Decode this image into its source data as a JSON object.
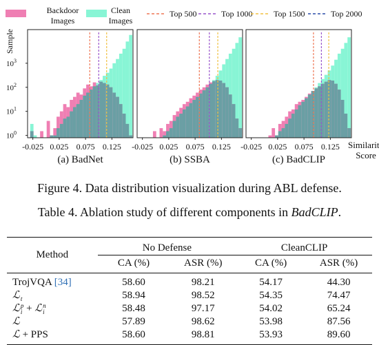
{
  "figure": {
    "legend": {
      "backdoor_label": [
        "Backdoor",
        "Images"
      ],
      "clean_label": [
        "Clean",
        "Images"
      ],
      "lines": [
        {
          "label": "Top 500",
          "color": "#ee7755"
        },
        {
          "label": "Top 1000",
          "color": "#9955cc"
        },
        {
          "label": "Top 1500",
          "color": "#f0c040"
        },
        {
          "label": "Top 2000",
          "color": "#2a4ca8"
        }
      ]
    },
    "colors": {
      "backdoor": "#ef7fb3",
      "clean": "#88f5d5",
      "overlap": "#6a9fa4"
    },
    "ylabel": "Sample",
    "xlabel": [
      "Similarity",
      "Score"
    ],
    "y_ticks": [
      {
        "value": 1,
        "base": "10",
        "exp": "0"
      },
      {
        "value": 10,
        "base": "10",
        "exp": "1"
      },
      {
        "value": 100,
        "base": "10",
        "exp": "2"
      },
      {
        "value": 1000,
        "base": "10",
        "exp": "3"
      }
    ]
  },
  "chart_data": [
    {
      "type": "bar",
      "title": "(a) BadNet",
      "y_scale": "log",
      "ylim": [
        0.8,
        25000
      ],
      "xlim": [
        -0.035,
        0.165
      ],
      "x_ticks": [
        "-0.025",
        "0.025",
        "0.075",
        "0.125"
      ],
      "x_tick_values": [
        -0.025,
        0.025,
        0.075,
        0.125
      ],
      "bin_start": -0.03,
      "bin_width": 0.00625,
      "series": [
        {
          "name": "Backdoor Images",
          "values": [
            1.5,
            0.8,
            0.8,
            1.5,
            0.8,
            4,
            1,
            2,
            6,
            10,
            20,
            15,
            30,
            40,
            60,
            50,
            90,
            130,
            110,
            160,
            120,
            170,
            150,
            130,
            100,
            60,
            40,
            20,
            8,
            3,
            1
          ]
        },
        {
          "name": "Clean Images",
          "values": [
            3,
            1,
            0.8,
            0.8,
            0.8,
            0.8,
            1,
            1,
            2,
            3,
            5,
            6,
            10,
            15,
            20,
            30,
            45,
            60,
            80,
            110,
            150,
            200,
            300,
            400,
            600,
            1000,
            1500,
            2500,
            4000,
            8000,
            15000
          ]
        }
      ],
      "thresholds": [
        0.083,
        0.1,
        0.115
      ]
    },
    {
      "type": "bar",
      "title": "(b) SSBA",
      "y_scale": "log",
      "ylim": [
        0.8,
        25000
      ],
      "xlim": [
        -0.035,
        0.165
      ],
      "x_ticks": [
        "-0.025",
        "0.025",
        "0.075",
        "0.125"
      ],
      "x_tick_values": [
        -0.025,
        0.025,
        0.075,
        0.125
      ],
      "bin_start": -0.03,
      "bin_width": 0.00625,
      "series": [
        {
          "name": "Backdoor Images",
          "values": [
            0.8,
            0.8,
            0.8,
            0.8,
            1.5,
            0.8,
            2,
            1.5,
            3,
            4,
            7,
            10,
            14,
            20,
            25,
            35,
            45,
            60,
            80,
            100,
            130,
            160,
            180,
            200,
            190,
            150,
            100,
            50,
            20,
            5,
            2
          ]
        },
        {
          "name": "Clean Images",
          "values": [
            0.8,
            0.8,
            0.8,
            0.8,
            0.8,
            0.8,
            0.8,
            1,
            1.5,
            2,
            4,
            6,
            8,
            12,
            16,
            22,
            30,
            40,
            55,
            75,
            100,
            140,
            200,
            300,
            500,
            900,
            1500,
            2500,
            4000,
            7000,
            12000
          ]
        }
      ],
      "thresholds": [
        0.083,
        0.102,
        0.118
      ]
    },
    {
      "type": "bar",
      "title": "(c) BadCLIP",
      "y_scale": "log",
      "ylim": [
        0.8,
        25000
      ],
      "xlim": [
        -0.035,
        0.165
      ],
      "x_ticks": [
        "-0.025",
        "0.025",
        "0.075",
        "0.125"
      ],
      "x_tick_values": [
        -0.025,
        0.025,
        0.075,
        0.125
      ],
      "bin_start": -0.03,
      "bin_width": 0.00625,
      "series": [
        {
          "name": "Backdoor Images",
          "values": [
            0.8,
            0.8,
            0.8,
            0.8,
            0.8,
            0.8,
            1,
            2,
            1,
            3,
            4,
            6,
            10,
            12,
            20,
            25,
            30,
            40,
            55,
            70,
            90,
            110,
            140,
            170,
            200,
            190,
            140,
            80,
            30,
            8,
            2
          ]
        },
        {
          "name": "Clean Images",
          "values": [
            0.8,
            0.8,
            0.8,
            0.8,
            0.8,
            0.8,
            0.8,
            0.8,
            1,
            1.5,
            2,
            3,
            5,
            8,
            12,
            18,
            25,
            35,
            50,
            70,
            100,
            150,
            220,
            330,
            500,
            800,
            1400,
            2500,
            4000,
            7000,
            12000
          ]
        }
      ],
      "thresholds": [
        0.093,
        0.108,
        0.122
      ]
    }
  ],
  "captions": {
    "figure": "Figure 4. Data distribution visualization during ABL defense.",
    "table_prefix": "Table 4. Ablation study of different components in ",
    "table_em": "BadCLIP",
    "table_suffix": "."
  },
  "table": {
    "method_header": "Method",
    "groups": [
      "No Defense",
      "CleanCLIP"
    ],
    "subheaders": [
      "CA (%)",
      "ASR (%)",
      "CA (%)",
      "ASR (%)"
    ],
    "rows": [
      {
        "method": "TrojVQA",
        "cite": "[34]",
        "sup": "",
        "sub": "",
        "values": [
          "58.60",
          "98.21",
          "54.17",
          "44.30"
        ]
      },
      {
        "method": "L",
        "cite": "",
        "sup": "",
        "sub": "t",
        "values": [
          "58.94",
          "98.52",
          "54.35",
          "74.47"
        ]
      },
      {
        "method": "L",
        "cite": "",
        "sup": "p",
        "sub": "i",
        "plus": " + ",
        "method2": "L",
        "sup2": "n",
        "sub2": "i",
        "values": [
          "58.48",
          "97.17",
          "54.02",
          "65.24"
        ]
      },
      {
        "method": "L",
        "cite": "",
        "sup": "",
        "sub": "",
        "values": [
          "57.89",
          "98.62",
          "53.98",
          "87.56"
        ]
      },
      {
        "method": "L",
        "cite": "",
        "sup": "",
        "sub": "",
        "suffix": " + PPS",
        "values": [
          "58.60",
          "98.81",
          "53.93",
          "89.60"
        ],
        "bold_cols": [
          1,
          3
        ]
      }
    ]
  }
}
